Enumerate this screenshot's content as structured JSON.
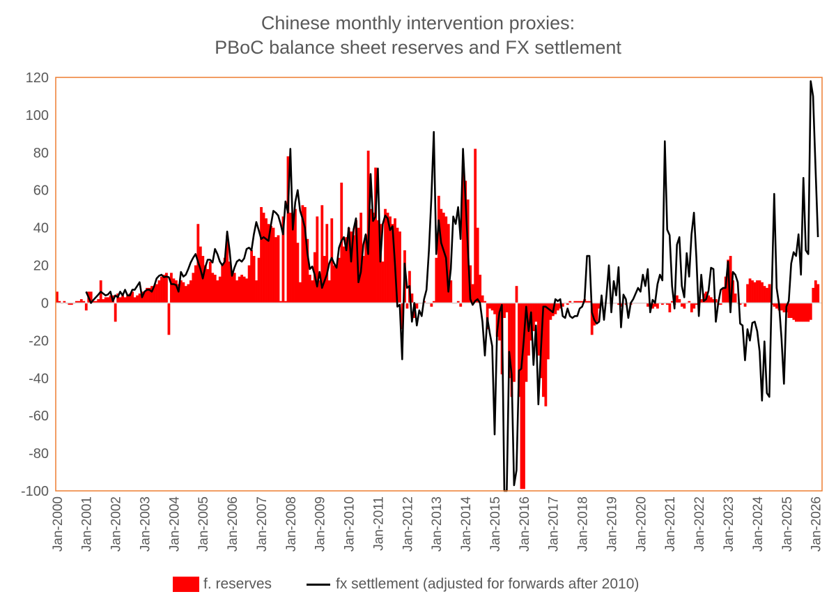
{
  "chart_data": {
    "type": "bar+line",
    "title": [
      "Chinese monthly intervention proxies:",
      "PBoC balance sheet reserves and FX settlement"
    ],
    "xlabel": "",
    "ylabel": "",
    "ylim": [
      -100,
      120
    ],
    "yticks": [
      -100,
      -80,
      -60,
      -40,
      -20,
      0,
      20,
      40,
      60,
      80,
      100,
      120
    ],
    "xtick_labels": [
      "Jan-2000",
      "Jan-2001",
      "Jan-2002",
      "Jan-2003",
      "Jan-2004",
      "Jan-2005",
      "Jan-2006",
      "Jan-2007",
      "Jan-2008",
      "Jan-2009",
      "Jan-2010",
      "Jan-2011",
      "Jan-2012",
      "Jan-2013",
      "Jan-2014",
      "Jan-2015",
      "Jan-2016",
      "Jan-2017",
      "Jan-2018",
      "Jan-2019",
      "Jan-2020",
      "Jan-2021",
      "Jan-2022",
      "Jan-2023",
      "Jan-2024",
      "Jan-2025",
      "Jan-2026"
    ],
    "x_start": "Jan-2000",
    "x_frequency": "monthly",
    "legend_position": "bottom",
    "colors": {
      "reserves": "#FF0000",
      "fx": "#000000",
      "plot_border": "#ED7D31",
      "text": "#595959"
    },
    "series": [
      {
        "name": "f. reserves",
        "kind": "bar",
        "start_month_index": 0,
        "values_by_year": {
          "2000": [
            6,
            1,
            0,
            1,
            0,
            -1,
            -1,
            0,
            1,
            1,
            2,
            1
          ],
          "2001": [
            -4,
            6,
            6,
            1,
            1,
            2,
            12,
            2,
            3,
            3,
            4,
            4
          ],
          "2002": [
            -10,
            5,
            3,
            4,
            3,
            4,
            5,
            6,
            3,
            4,
            5,
            6
          ],
          "2003": [
            6,
            8,
            8,
            9,
            9,
            10,
            12,
            14,
            15,
            16,
            -17,
            16
          ],
          "2004": [
            13,
            12,
            10,
            12,
            11,
            9,
            10,
            12,
            16,
            20,
            42,
            30
          ],
          "2005": [
            25,
            20,
            18,
            22,
            16,
            15,
            12,
            14,
            20,
            24,
            36,
            22
          ],
          "2006": [
            17,
            16,
            12,
            14,
            15,
            14,
            13,
            20,
            28,
            25,
            12,
            24
          ],
          "2007": [
            51,
            48,
            45,
            42,
            41,
            40,
            35,
            36,
            1,
            46,
            1,
            78
          ],
          "2008": [
            48,
            44,
            50,
            32,
            11,
            52,
            51,
            34,
            15,
            12,
            27,
            46
          ],
          "2009": [
            12,
            52,
            25,
            42,
            12,
            45,
            20,
            20,
            24,
            64,
            30,
            35
          ],
          "2010": [
            40,
            38,
            36,
            44,
            40,
            48,
            25,
            36,
            81,
            50,
            48,
            72
          ],
          "2011": [
            44,
            42,
            22,
            50,
            48,
            46,
            42,
            45,
            40,
            38,
            -14,
            28
          ],
          "2012": [
            -3,
            17,
            5,
            -8,
            -3,
            0,
            0,
            1,
            0,
            0,
            -2,
            1
          ],
          "2013": [
            24,
            57,
            50,
            48,
            46,
            42,
            12,
            0,
            0,
            1,
            -2,
            73
          ],
          "2014": [
            65,
            55,
            20,
            10,
            82,
            40,
            15,
            4,
            1,
            -14,
            -3,
            -4
          ],
          "2015": [
            -6,
            -18,
            -20,
            -38,
            -8,
            -5,
            -40,
            -50,
            -42,
            9,
            -50,
            -99
          ],
          "2016": [
            -99,
            -42,
            -28,
            -20,
            -15,
            -10,
            -28,
            -40,
            -50,
            -55,
            -30,
            -9
          ],
          "2017": [
            -7,
            -6,
            -4,
            -3,
            -2,
            0,
            -1,
            1,
            0,
            1,
            1,
            1
          ],
          "2018": [
            1,
            2,
            1,
            1,
            -17,
            -12,
            -10,
            -3,
            -1,
            0,
            0,
            0
          ],
          "2019": [
            0,
            0,
            0,
            -1,
            -2,
            0,
            -1,
            0,
            -1,
            0,
            0,
            0
          ],
          "2020": [
            0,
            0,
            0,
            -2,
            -3,
            -3,
            -2,
            -3,
            0,
            -1,
            0,
            -1
          ],
          "2021": [
            -5,
            1,
            -1,
            4,
            2,
            -2,
            -3,
            0,
            1,
            -5,
            -3,
            -1
          ],
          "2022": [
            1,
            2,
            5,
            6,
            4,
            3,
            2,
            2,
            -1,
            -1,
            8,
            14
          ],
          "2023": [
            23,
            25,
            12,
            5,
            0,
            -1,
            0,
            -2,
            10,
            13,
            12,
            11
          ],
          "2024": [
            12,
            12,
            11,
            9,
            8,
            10,
            -1,
            -2,
            -3,
            -4,
            -4,
            -5
          ],
          "2025": [
            -5,
            -8,
            -8,
            -9,
            -10,
            -10,
            -10,
            -10,
            -10,
            -10,
            -9,
            8
          ],
          "2026": [
            12,
            10
          ]
        }
      },
      {
        "name": "fx settlement (adjusted for forwards after 2010)",
        "kind": "line",
        "start_month_index": 12,
        "values": [
          6,
          3,
          0,
          1.6,
          3,
          4.4,
          6,
          5,
          4,
          4.5,
          6,
          1,
          4,
          3,
          6,
          4,
          7,
          4,
          4,
          7,
          7,
          9,
          11,
          3,
          6,
          7,
          7,
          6,
          9,
          13,
          14.4,
          15,
          13.7,
          14,
          13.7,
          10,
          10,
          9.5,
          6,
          16.5,
          14,
          15,
          18,
          21.5,
          24,
          26,
          22,
          18,
          13,
          19,
          23,
          23,
          21.5,
          28.7,
          26,
          22,
          20,
          22,
          38,
          28,
          14.4,
          18.7,
          22,
          23,
          22,
          23.7,
          28.7,
          29.4,
          28,
          36.5,
          43,
          38.7,
          34,
          35,
          34,
          33,
          41.5,
          49,
          48,
          46.5,
          42,
          36.5,
          54,
          48,
          82,
          39,
          53.6,
          60,
          49,
          45,
          40,
          26.5,
          18,
          19.4,
          15,
          8.7,
          16.5,
          8,
          11.6,
          15,
          21,
          24,
          21,
          18.7,
          29.4,
          33,
          35,
          28,
          40,
          22,
          39,
          45,
          11,
          16.5,
          31,
          36.5,
          26,
          68.6,
          43.6,
          45.8,
          71.5,
          22,
          42,
          46.5,
          45,
          38.7,
          40.8,
          21,
          -2,
          -1,
          -30,
          21,
          8,
          9,
          -10,
          0,
          -12,
          -4,
          -7,
          2,
          7,
          28,
          56,
          91,
          26,
          44,
          32,
          28,
          24,
          6,
          18,
          46,
          42,
          51,
          34,
          82,
          56,
          29,
          2,
          -1,
          1,
          2,
          0,
          -10,
          -28,
          -8,
          -16,
          -23,
          -70,
          -16,
          -5,
          -1,
          -100,
          -100,
          -26,
          -38,
          -97,
          -89,
          -36,
          -35,
          -20,
          -2,
          -15,
          -5,
          -33,
          -12,
          -54,
          -26,
          -2,
          -2,
          -3,
          -4,
          -5,
          2,
          1,
          2,
          -7,
          -8,
          -3,
          -7,
          -8,
          -7,
          -7,
          -3,
          -2,
          1.6,
          25,
          25,
          -5,
          -9,
          -11,
          -10,
          4,
          -9,
          4,
          20,
          -5,
          11.6,
          4,
          19,
          -13,
          4.4,
          2,
          -8,
          0,
          2,
          5,
          8,
          6,
          15,
          9,
          18,
          -5,
          1.6,
          0,
          10,
          15,
          12,
          86,
          39,
          36,
          9,
          -3,
          31,
          35,
          9,
          3,
          26.5,
          14,
          36.5,
          48,
          24,
          -7,
          15,
          1,
          2,
          6.6,
          18.7,
          18,
          -10,
          0,
          7,
          8,
          8,
          22,
          -5,
          16.5,
          15,
          11,
          -11,
          -12,
          -30.5,
          -14,
          -20,
          -10.6,
          -10,
          -15,
          -26,
          -52,
          -20.5,
          -48,
          -50,
          6.6,
          58,
          8,
          -1,
          -19,
          -43,
          -2,
          1,
          21,
          27,
          25,
          36.5,
          15,
          66.5,
          28,
          26,
          118,
          110,
          72,
          35
        ]
      }
    ]
  },
  "legend": {
    "reserves_label": "f. reserves",
    "fx_label": "fx settlement (adjusted for forwards after 2010)"
  }
}
